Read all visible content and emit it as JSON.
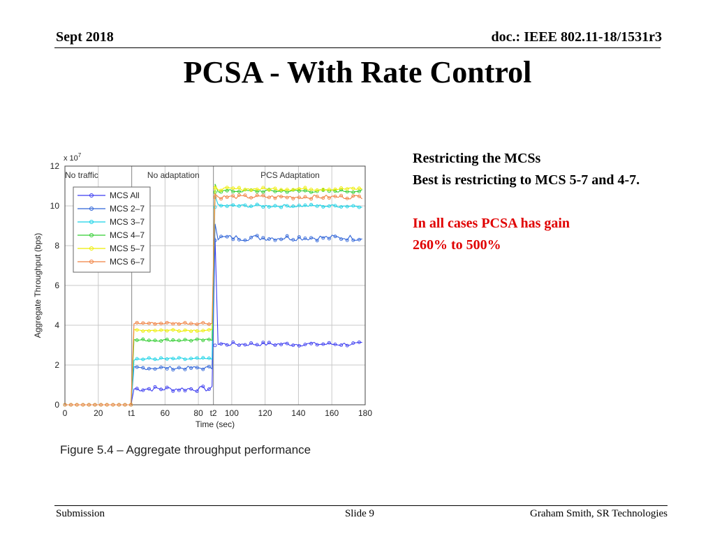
{
  "header": {
    "date": "Sept 2018",
    "doc": "doc.: IEEE 802.11-18/1531r3"
  },
  "title": "PCSA - With Rate Control",
  "notes": {
    "line1": "Restricting the MCSs",
    "line2": "Best is restricting to MCS 5-7 and 4-7.",
    "red1": "In all cases PCSA has gain",
    "red2": "260% to 500%"
  },
  "figure": {
    "caption": "Figure 5.4 – Aggregate throughput performance"
  },
  "footer": {
    "left": "Submission",
    "center": "Slide 9",
    "right": "Graham Smith, SR Technologies"
  },
  "chart_data": {
    "type": "line",
    "ylabel": "Aggregate Throughput (bps)",
    "xlabel": "Time (sec)",
    "y_multiplier": "x 10^7",
    "y_multiplier_base": "x 10",
    "y_multiplier_exp": "7",
    "xlim": [
      0,
      180
    ],
    "ylim": [
      0,
      12
    ],
    "grid": true,
    "legend_position": "top-left",
    "y_ticks": [
      0,
      2,
      4,
      6,
      8,
      10,
      12
    ],
    "x_ticks": [
      {
        "value": 0,
        "label": "0"
      },
      {
        "value": 20,
        "label": "20"
      },
      {
        "value": 40,
        "label": "t1"
      },
      {
        "value": 60,
        "label": "60"
      },
      {
        "value": 80,
        "label": "80"
      },
      {
        "value": 89,
        "label": "t2"
      },
      {
        "value": 100,
        "label": "100"
      },
      {
        "value": 120,
        "label": "120"
      },
      {
        "value": 140,
        "label": "140"
      },
      {
        "value": 160,
        "label": "160"
      },
      {
        "value": 180,
        "label": "180"
      }
    ],
    "regions": [
      {
        "label": "No traffic",
        "x": 10
      },
      {
        "label": "No adaptation",
        "x": 65
      },
      {
        "label": "PCS Adaptation",
        "x": 135
      }
    ],
    "phase_boundaries": [
      40,
      89
    ],
    "series": [
      {
        "name": "MCS All",
        "color": "#3c3cf0",
        "levels": [
          0,
          0.8,
          3.05
        ],
        "peak": 8.4,
        "noise": [
          0.12,
          0.08
        ]
      },
      {
        "name": "MCS 2–7",
        "color": "#2f64d8",
        "levels": [
          0,
          1.85,
          8.4
        ],
        "peak": 9.1,
        "noise": [
          0.08,
          0.12
        ]
      },
      {
        "name": "MCS 3–7",
        "color": "#16d2e6",
        "levels": [
          0,
          2.3,
          10.0
        ],
        "peak": 10.5,
        "noise": [
          0.06,
          0.06
        ]
      },
      {
        "name": "MCS 4–7",
        "color": "#32cd32",
        "levels": [
          0,
          3.25,
          10.75
        ],
        "peak": 11.1,
        "noise": [
          0.05,
          0.06
        ]
      },
      {
        "name": "MCS 5–7",
        "color": "#eded00",
        "levels": [
          0,
          3.75,
          10.85
        ],
        "peak": 11.0,
        "noise": [
          0.05,
          0.06
        ]
      },
      {
        "name": "MCS 6–7",
        "color": "#f08040",
        "levels": [
          0,
          4.1,
          10.45
        ],
        "peak": 10.6,
        "noise": [
          0.05,
          0.08
        ]
      }
    ]
  }
}
